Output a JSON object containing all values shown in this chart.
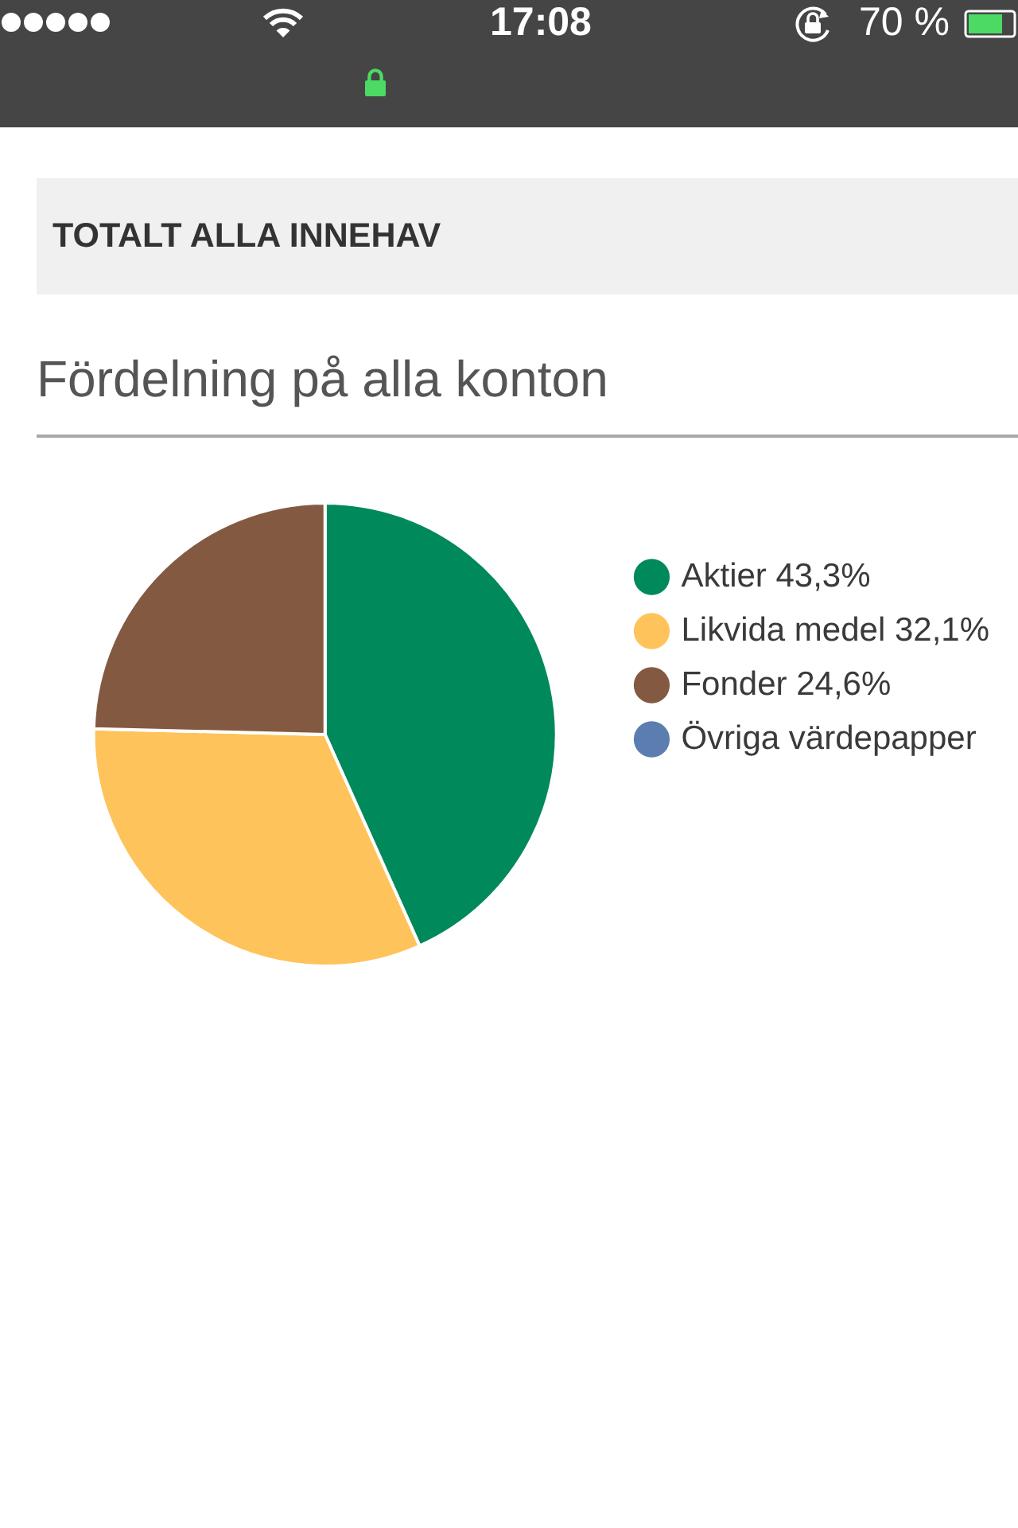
{
  "chart_data": {
    "type": "pie",
    "title": "TOTALT ALLA INNEHAV",
    "subtitle": "Fördelning på alla konton",
    "categories": [
      "Aktier",
      "Likvida medel",
      "Fonder",
      "Övriga värdepapper"
    ],
    "values": [
      43.3,
      32.1,
      24.6,
      0
    ],
    "colors": [
      "#00895a",
      "#fec35a",
      "#835a41",
      "#5b7db0"
    ],
    "value_labels": [
      "43,3%",
      "32,1%",
      "24,6%",
      null
    ],
    "legend": "right",
    "annotations": [
      "17:08",
      "70 %"
    ]
  }
}
